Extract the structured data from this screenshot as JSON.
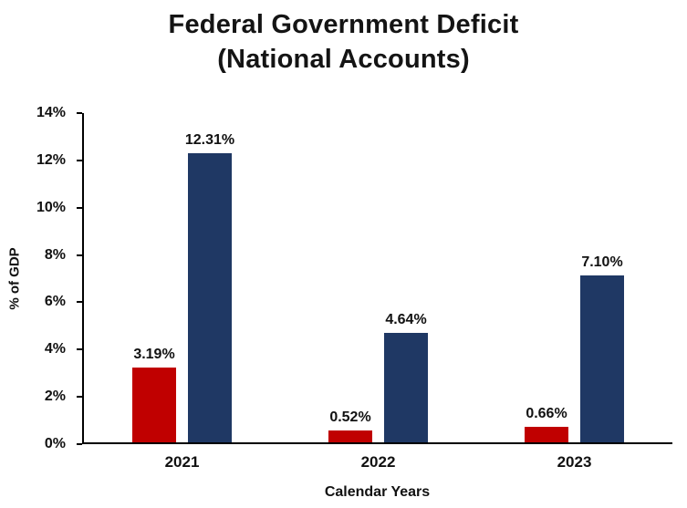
{
  "title": {
    "line1": "Federal Government Deficit",
    "line2": "(National Accounts)"
  },
  "chart_data": {
    "type": "bar",
    "title": "Federal Government Deficit (National Accounts)",
    "xlabel": "Calendar Years",
    "ylabel": "% of GDP",
    "categories": [
      "2021",
      "2022",
      "2023"
    ],
    "series": [
      {
        "name": "red-series",
        "color": "#C00000",
        "values": [
          3.19,
          0.52,
          0.66
        ],
        "labels": [
          "3.19%",
          "0.52%",
          "0.66%"
        ]
      },
      {
        "name": "navy-series",
        "color": "#1F3864",
        "values": [
          12.31,
          4.64,
          7.1
        ],
        "labels": [
          "12.31%",
          "4.64%",
          "7.10%"
        ]
      }
    ],
    "ylim": [
      0,
      14
    ],
    "yticks": [
      "0%",
      "2%",
      "4%",
      "6%",
      "8%",
      "10%",
      "12%",
      "14%"
    ],
    "grid": false,
    "legend": "none"
  }
}
